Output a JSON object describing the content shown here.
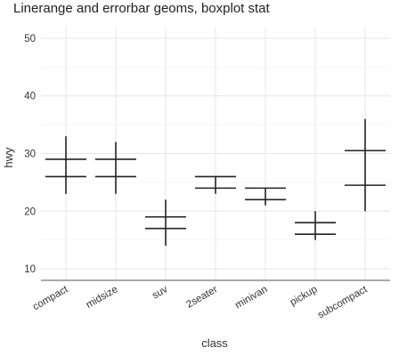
{
  "chart_data": {
    "type": "errorbar",
    "title": "Linerange and errorbar geoms, boxplot stat",
    "xlabel": "class",
    "ylabel": "hwy",
    "ylim": [
      8,
      52
    ],
    "yticks": [
      10,
      20,
      30,
      40,
      50
    ],
    "grid": true,
    "categories": [
      "compact",
      "midsize",
      "suv",
      "2seater",
      "minivan",
      "pickup",
      "subcompact"
    ],
    "ranges": [
      {
        "class": "compact",
        "ymin": 23,
        "lower": 26,
        "upper": 29,
        "ymax": 33
      },
      {
        "class": "midsize",
        "ymin": 23,
        "lower": 26,
        "upper": 29,
        "ymax": 32
      },
      {
        "class": "suv",
        "ymin": 14,
        "lower": 17,
        "upper": 19,
        "ymax": 22
      },
      {
        "class": "2seater",
        "ymin": 23,
        "lower": 24,
        "upper": 26,
        "ymax": 26
      },
      {
        "class": "minivan",
        "ymin": 21,
        "lower": 22,
        "upper": 24,
        "ymax": 24
      },
      {
        "class": "pickup",
        "ymin": 15,
        "lower": 16,
        "upper": 18,
        "ymax": 20
      },
      {
        "class": "subcompact",
        "ymin": 20,
        "lower": 24.5,
        "upper": 30.5,
        "ymax": 36
      }
    ]
  }
}
